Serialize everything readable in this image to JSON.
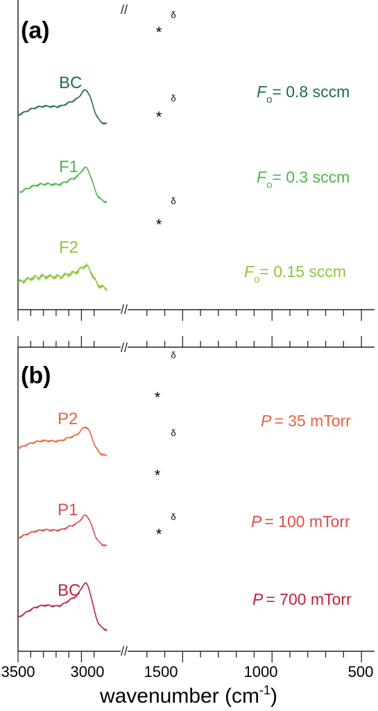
{
  "chart_data": [
    {
      "type": "line",
      "panel_label": "(a)",
      "xlim": [
        3500,
        450
      ],
      "x_axis_broken": true,
      "ticks": [
        3500,
        3000,
        1500,
        1000,
        500
      ],
      "marker_labels": {
        "star": "*",
        "delta": "δ"
      },
      "peaks": {
        "star": 1610,
        "delta": 1510
      },
      "series": [
        {
          "name": "BC",
          "annotation_prefix": "F",
          "annotation_sub": "o",
          "annotation_suffix": "= 0.8 sccm",
          "color": "#1e6b47"
        },
        {
          "name": "F1",
          "annotation_prefix": "F",
          "annotation_sub": "o",
          "annotation_suffix": "= 0.3 sccm",
          "color": "#4cb54c"
        },
        {
          "name": "F2",
          "annotation_prefix": "F",
          "annotation_sub": "o",
          "annotation_suffix": "= 0.15 sccm",
          "color": "#8cc43c"
        }
      ]
    },
    {
      "type": "line",
      "panel_label": "(b)",
      "xlim": [
        3500,
        450
      ],
      "x_axis_broken": true,
      "ticks": [
        3500,
        3000,
        1500,
        1000,
        500
      ],
      "marker_labels": {
        "star": "*",
        "delta": "δ"
      },
      "peaks": {
        "star": 1610,
        "delta": 1510
      },
      "series": [
        {
          "name": "P2",
          "annotation_prefix": "P",
          "annotation_suffix": "= 35 mTorr",
          "color": "#e8623a"
        },
        {
          "name": "P1",
          "annotation_prefix": "P",
          "annotation_suffix": "= 100 mTorr",
          "color": "#e24a4a"
        },
        {
          "name": "BC",
          "annotation_prefix": "P",
          "annotation_suffix": "= 700 mTorr",
          "color": "#c21f3b"
        }
      ]
    }
  ],
  "xlabel": "wavenumber (cm",
  "xlabel_sup": "-1",
  "xlabel_close": ")",
  "tick_labels": [
    "3500",
    "3000",
    "1500",
    "1000",
    "500"
  ],
  "break_mark": "//"
}
